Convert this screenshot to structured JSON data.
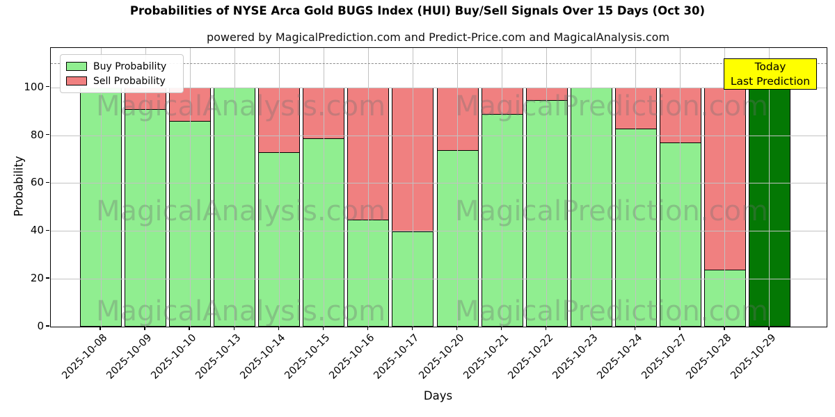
{
  "title": "Probabilities of NYSE Arca Gold BUGS Index (HUI) Buy/Sell Signals Over 15 Days (Oct 30)",
  "subtitle": "powered by MagicalPrediction.com and Predict-Price.com and MagicalAnalysis.com",
  "watermarks": {
    "left": "MagicalAnalysis.com",
    "right": "MagicalPrediction.com"
  },
  "legend": [
    {
      "label": "Buy Probability",
      "color": "#90EE90"
    },
    {
      "label": "Sell Probability",
      "color": "#F08080"
    }
  ],
  "annotation": {
    "line1": "Today",
    "line2": "Last Prediction",
    "bg": "#FFFF00"
  },
  "axes": {
    "ylabel": "Probability",
    "xlabel": "Days",
    "yticks": [
      0,
      20,
      40,
      60,
      80,
      100
    ],
    "ymax": 116.5,
    "dashed_line_y": 110
  },
  "chart_data": {
    "type": "bar",
    "stacked": true,
    "title": "Probabilities of NYSE Arca Gold BUGS Index (HUI) Buy/Sell Signals Over 15 Days (Oct 30)",
    "xlabel": "Days",
    "ylabel": "Probability",
    "ylim": [
      0,
      116.5
    ],
    "grid": true,
    "legend_position": "upper left",
    "categories": [
      "2025-10-08",
      "2025-10-09",
      "2025-10-10",
      "2025-10-13",
      "2025-10-14",
      "2025-10-15",
      "2025-10-16",
      "2025-10-17",
      "2025-10-20",
      "2025-10-21",
      "2025-10-22",
      "2025-10-23",
      "2025-10-24",
      "2025-10-27",
      "2025-10-28",
      "2025-10-29"
    ],
    "series": [
      {
        "name": "Buy Probability",
        "color": "#90EE90",
        "values": [
          100,
          91,
          86,
          100,
          73,
          79,
          45,
          40,
          74,
          89,
          95,
          100,
          83,
          77,
          24,
          100
        ]
      },
      {
        "name": "Sell Probability",
        "color": "#F08080",
        "values": [
          0,
          9,
          14,
          0,
          27,
          21,
          55,
          60,
          26,
          11,
          5,
          0,
          17,
          23,
          76,
          0
        ]
      }
    ],
    "today_index": 15,
    "today_color": "#047804"
  }
}
